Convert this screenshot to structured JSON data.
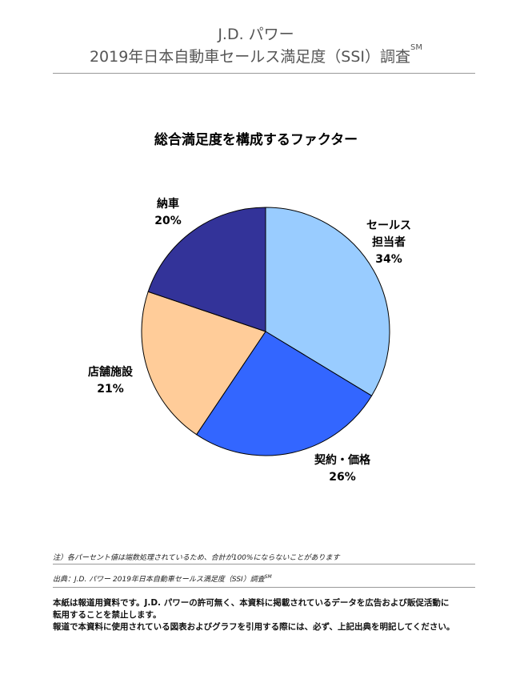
{
  "header": {
    "brand": "J.D. パワー",
    "survey_title": "2019年日本自動車セールス満足度（SSI）調査",
    "survey_mark": "SM"
  },
  "chart_data": {
    "type": "pie",
    "title": "総合満足度を構成するファクター",
    "slices": [
      {
        "label": "セールス担当者",
        "label_lines": [
          "セールス",
          "担当者"
        ],
        "value": 34,
        "value_label": "34%",
        "color": "#99CCFF"
      },
      {
        "label": "契約・価格",
        "label_lines": [
          "契約・価格"
        ],
        "value": 26,
        "value_label": "26%",
        "color": "#3366FF"
      },
      {
        "label": "店舗施設",
        "label_lines": [
          "店舗施設"
        ],
        "value": 21,
        "value_label": "21%",
        "color": "#FFCC99"
      },
      {
        "label": "納車",
        "label_lines": [
          "納車"
        ],
        "value": 20,
        "value_label": "20%",
        "color": "#333399"
      }
    ]
  },
  "notes": {
    "note1": "注）各パーセント値は端数処理されているため、合計が100%にならないことがあります",
    "source": "出典：J.D. パワー 2019年日本自動車セールス満足度（SSI）調査",
    "source_mark": "SM"
  },
  "disclaimer": {
    "line1": "本紙は報道用資料です。J.D. パワーの許可無く、本資料に掲載されているデータを広告および販促活動に",
    "line2": "転用することを禁止します。",
    "line3": "報道で本資料に使用されている図表およびグラフを引用する際には、必ず、上記出典を明記してください。"
  }
}
